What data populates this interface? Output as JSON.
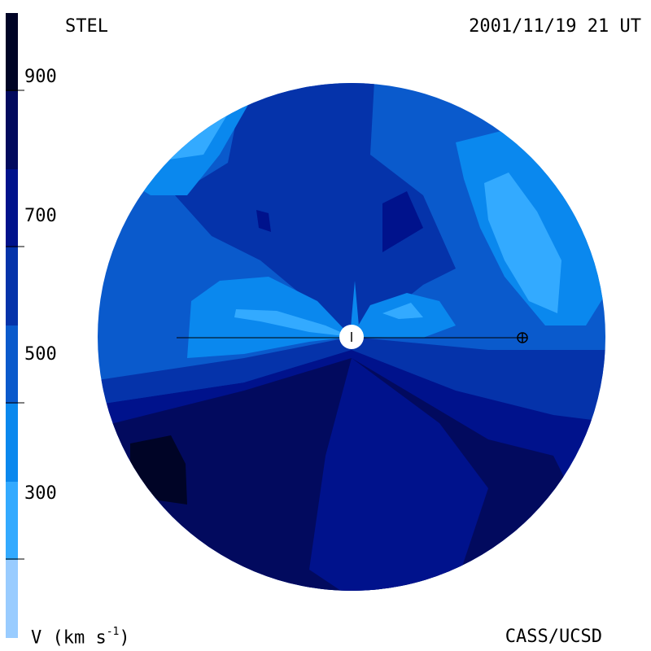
{
  "header": {
    "station": "STEL",
    "timestamp": "2001/11/19 21 UT"
  },
  "footer": {
    "quantity": "V (km s",
    "exponent": "-1",
    "quantity_close": ")",
    "credit": "CASS/UCSD"
  },
  "colorbar": {
    "tick_labels": [
      "900",
      "700",
      "500",
      "300"
    ],
    "tick_values": [
      900,
      700,
      500,
      300
    ],
    "range": [
      200,
      1000
    ],
    "bands": [
      {
        "from": 200,
        "to": 300,
        "color": "#99ccff"
      },
      {
        "from": 300,
        "to": 400,
        "color": "#33aaff"
      },
      {
        "from": 400,
        "to": 500,
        "color": "#0a88ee"
      },
      {
        "from": 500,
        "to": 600,
        "color": "#0a5acc"
      },
      {
        "from": 600,
        "to": 700,
        "color": "#0533aa"
      },
      {
        "from": 700,
        "to": 800,
        "color": "#00128c"
      },
      {
        "from": 800,
        "to": 900,
        "color": "#020a5e"
      },
      {
        "from": 900,
        "to": 1000,
        "color": "#000426"
      }
    ]
  },
  "colors": {
    "background": "#ffffff",
    "sun": "#ffffff",
    "line": "#000000"
  },
  "icons": {
    "sun": "sun-disk-icon",
    "earth": "earth-symbol-icon"
  }
}
